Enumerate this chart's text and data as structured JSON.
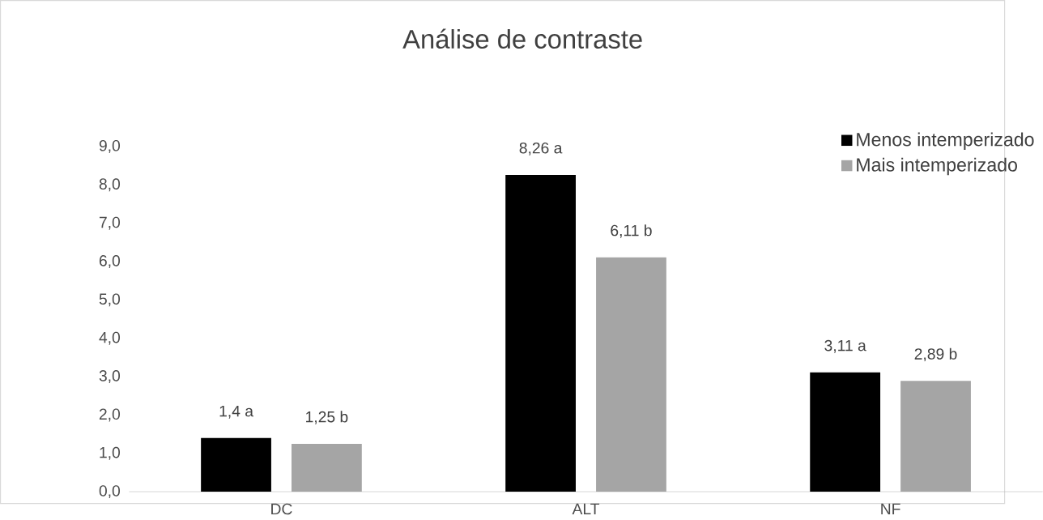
{
  "chart_data": {
    "type": "bar",
    "title": "Análise de contraste",
    "categories": [
      "DC",
      "ALT",
      "NF"
    ],
    "series": [
      {
        "name": "Menos intemperizado",
        "color": "#000000",
        "values": [
          1.4,
          8.26,
          3.11
        ],
        "value_labels": [
          "1,4 a",
          "8,26 a",
          "3,11 a"
        ]
      },
      {
        "name": "Mais intemperizado",
        "color": "#a5a5a5",
        "values": [
          1.25,
          6.11,
          2.89
        ],
        "value_labels": [
          "1,25 b",
          "6,11 b",
          "2,89 b"
        ]
      }
    ],
    "ylim": [
      0,
      9
    ],
    "yticks": [
      {
        "value": 0,
        "label": "0,0"
      },
      {
        "value": 1,
        "label": "1,0"
      },
      {
        "value": 2,
        "label": "2,0"
      },
      {
        "value": 3,
        "label": "3,0"
      },
      {
        "value": 4,
        "label": "4,0"
      },
      {
        "value": 5,
        "label": "5,0"
      },
      {
        "value": 6,
        "label": "6,0"
      },
      {
        "value": 7,
        "label": "7,0"
      },
      {
        "value": 8,
        "label": "8,0"
      },
      {
        "value": 9,
        "label": "9,0"
      }
    ],
    "legend": "top right"
  }
}
